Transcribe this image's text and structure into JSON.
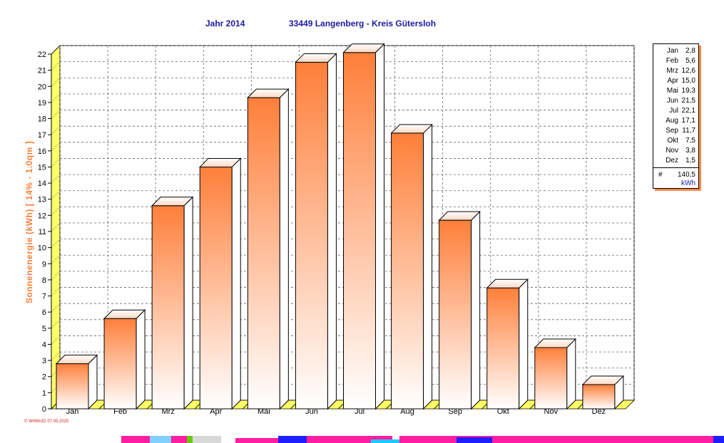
{
  "title": {
    "year_label": "Jahr  2014",
    "location": "33449 Langenberg - Kreis Gütersloh"
  },
  "chart_data": {
    "type": "bar",
    "title": "Jahr  2014     33449 Langenberg - Kreis Gütersloh",
    "categories": [
      "Jan",
      "Feb",
      "Mrz",
      "Apr",
      "Mai",
      "Jun",
      "Jul",
      "Aug",
      "Sep",
      "Okt",
      "Nov",
      "Dez"
    ],
    "values": [
      2.8,
      5.6,
      12.6,
      15.0,
      19.3,
      21.5,
      22.1,
      17.1,
      11.7,
      7.5,
      3.8,
      1.5
    ],
    "xlabel": "",
    "ylabel": "Sonnenenergie  (kWh)   [ 14% - 1.0qm ]",
    "ylim": [
      0,
      22
    ],
    "yticks": [
      0,
      1,
      2,
      3,
      4,
      5,
      6,
      7,
      8,
      9,
      10,
      11,
      12,
      13,
      14,
      15,
      16,
      17,
      18,
      19,
      20,
      21,
      22
    ],
    "grid": true,
    "legend_position": "right",
    "bar_color": "#ff7f3a"
  },
  "legend": {
    "rows": [
      {
        "month": "Jan",
        "value": "2,8"
      },
      {
        "month": "Feb",
        "value": "5,6"
      },
      {
        "month": "Mrz",
        "value": "12,6"
      },
      {
        "month": "Apr",
        "value": "15,0"
      },
      {
        "month": "Mai",
        "value": "19,3"
      },
      {
        "month": "Jun",
        "value": "21,5"
      },
      {
        "month": "Jul",
        "value": "22,1"
      },
      {
        "month": "Aug",
        "value": "17,1"
      },
      {
        "month": "Sep",
        "value": "11,7"
      },
      {
        "month": "Okt",
        "value": "7,5"
      },
      {
        "month": "Nov",
        "value": "3,8"
      },
      {
        "month": "Dez",
        "value": "1,5"
      }
    ],
    "total_symbol": "#",
    "total": "140,5",
    "unit": "kWh"
  },
  "footer": {
    "text": "© WrWin32  07.05.2025"
  },
  "colors": {
    "title": "#1a1aa6",
    "ylabel": "#ff7f3a",
    "footer": "#d42020",
    "floor": "#ffff66"
  }
}
